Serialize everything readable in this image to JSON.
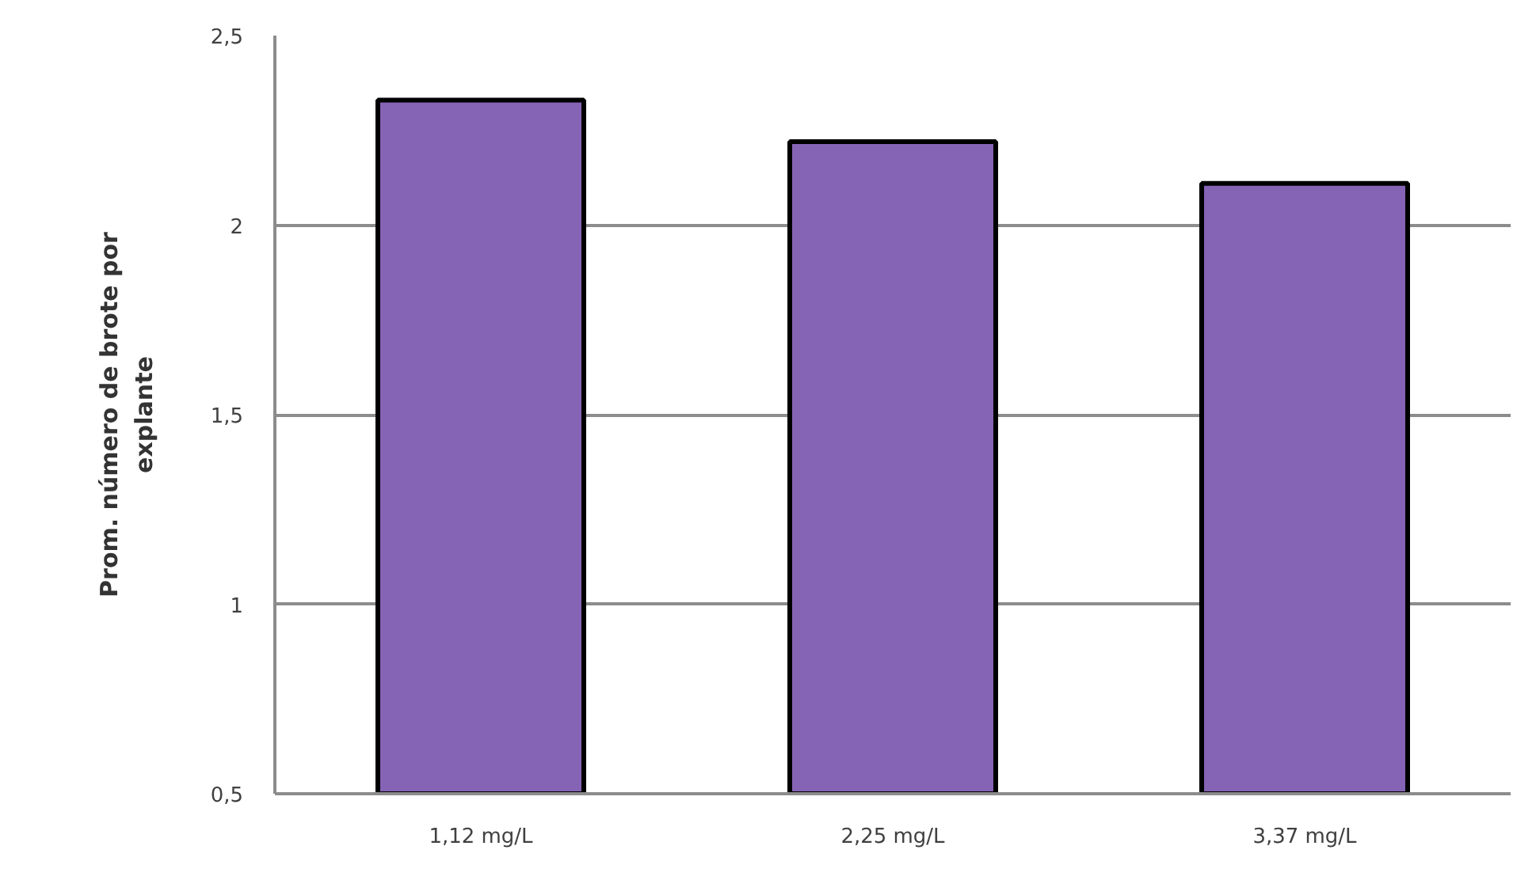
{
  "chart_data": {
    "type": "bar",
    "ylabel": "Prom. número de brote por explante",
    "categories": [
      "1,12 mg/L",
      "2,25 mg/L",
      "3,37 mg/L"
    ],
    "values": [
      2.33,
      2.22,
      2.11
    ],
    "color": "#8563b5",
    "ylim": [
      0.5,
      2.5
    ],
    "yticks": [
      {
        "value": 0.5,
        "label": "0,5"
      },
      1,
      {
        "value": 1.5,
        "label": "1,5"
      },
      2,
      {
        "value": 2.5,
        "label": "2,5"
      }
    ],
    "grid": "y"
  }
}
